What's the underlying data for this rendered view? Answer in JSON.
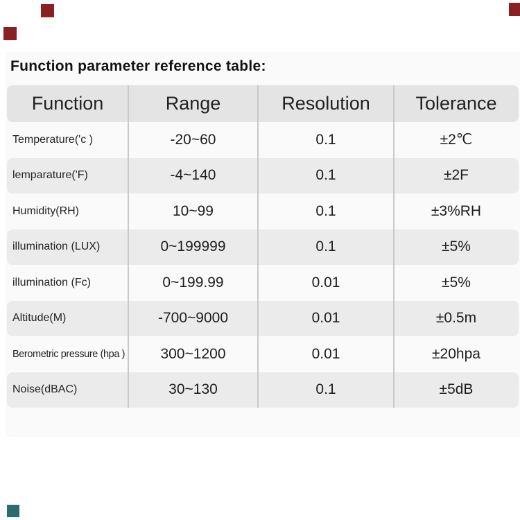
{
  "title": "Function parameter reference table:",
  "table": {
    "headers": [
      "Function",
      "Range",
      "Resolution",
      "Tolerance"
    ],
    "rows": [
      {
        "function": "Temperature('c )",
        "range": "-20~60",
        "resolution": "0.1",
        "tolerance": "±2℃"
      },
      {
        "function": "lemparature('F)",
        "range": "-4~140",
        "resolution": "0.1",
        "tolerance": "±2F"
      },
      {
        "function": "Humidity(RH)",
        "range": "10~99",
        "resolution": "0.1",
        "tolerance": "±3%RH"
      },
      {
        "function": "illumination (LUX)",
        "range": "0~199999",
        "resolution": "0.1",
        "tolerance": "±5%"
      },
      {
        "function": "illumination (Fc)",
        "range": "0~199.99",
        "resolution": "0.01",
        "tolerance": "±5%"
      },
      {
        "function": "Altitude(M)",
        "range": "-700~9000",
        "resolution": "0.01",
        "tolerance": "±0.5m"
      },
      {
        "function": "Berometric pressure (hpa )",
        "range": "300~1200",
        "resolution": "0.01",
        "tolerance": "±20hpa"
      },
      {
        "function": "Noise(dBAC)",
        "range": "30~130",
        "resolution": "0.1",
        "tolerance": "±5dB"
      }
    ]
  },
  "accent_colors": {
    "decor_red": "#8a2022",
    "decor_teal": "#2b6d6d",
    "header_bg": "#e4e4e4",
    "row_stripe_bg": "#ebebeb",
    "card_bg": "#fafafa"
  }
}
